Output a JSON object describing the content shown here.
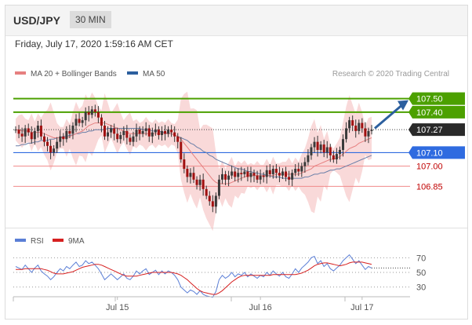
{
  "header": {
    "pair": "USD/JPY",
    "timeframe": "30 MIN"
  },
  "datetime": "Friday, July 17, 2020 1:59:16 AM CET",
  "legend": {
    "ma_bb": "MA 20 + Bollinger Bands",
    "ma50": "MA 50",
    "credit": "Research © 2020 Trading Central"
  },
  "rsi_legend": {
    "rsi": "RSI",
    "ma9": "9MA"
  },
  "colors": {
    "resistance": "#4ca000",
    "support": "#2f6be0",
    "target": "#c00000",
    "current": "#2a2a2a",
    "bollinger": "#f4b9b9",
    "ma20": "#e68080",
    "ma50": "#6a7fa8",
    "arrow": "#2c5f9e",
    "rsi": "#5b7fd6",
    "ma9": "#d62020"
  },
  "chart_data": [
    {
      "type": "candlestick",
      "ylim": [
        106.55,
        107.62
      ],
      "x_ticks": [
        "Jul 15",
        "Jul 16",
        "Jul 17"
      ],
      "levels": [
        {
          "label": "107.50",
          "value": 107.5,
          "kind": "resistance"
        },
        {
          "label": "107.40",
          "value": 107.4,
          "kind": "resistance"
        },
        {
          "label": "107.27",
          "value": 107.27,
          "kind": "current"
        },
        {
          "label": "107.10",
          "value": 107.1,
          "kind": "support"
        },
        {
          "label": "107.00",
          "value": 107.0,
          "kind": "target"
        },
        {
          "label": "106.85",
          "value": 106.85,
          "kind": "target"
        }
      ],
      "close": [
        107.27,
        107.24,
        107.22,
        107.28,
        107.25,
        107.2,
        107.26,
        107.3,
        107.22,
        107.18,
        107.15,
        107.1,
        107.13,
        107.18,
        107.22,
        107.2,
        107.26,
        107.24,
        107.3,
        107.35,
        107.32,
        107.34,
        107.4,
        107.38,
        107.42,
        107.4,
        107.36,
        107.3,
        107.22,
        107.25,
        107.28,
        107.24,
        107.2,
        107.23,
        107.26,
        107.21,
        107.18,
        107.22,
        107.27,
        107.24,
        107.26,
        107.28,
        107.22,
        107.25,
        107.27,
        107.23,
        107.26,
        107.24,
        107.27,
        107.25,
        107.22,
        107.18,
        107.05,
        106.98,
        106.92,
        106.95,
        106.9,
        106.86,
        106.9,
        106.83,
        106.78,
        106.74,
        106.7,
        106.78,
        106.9,
        106.94,
        106.9,
        106.93,
        106.96,
        106.92,
        106.95,
        106.94,
        106.96,
        106.92,
        106.95,
        106.93,
        106.9,
        106.93,
        106.92,
        106.97,
        106.94,
        106.98,
        106.95,
        106.93,
        106.96,
        106.92,
        106.9,
        106.95,
        106.98,
        106.96,
        107.0,
        107.03,
        107.08,
        107.14,
        107.18,
        107.12,
        107.16,
        107.1,
        107.14,
        107.08,
        107.05,
        107.09,
        107.12,
        107.2,
        107.28,
        107.34,
        107.3,
        107.26,
        107.32,
        107.28,
        107.22,
        107.26,
        107.27
      ],
      "ma20": [
        107.27,
        107.27,
        107.26,
        107.26,
        107.26,
        107.25,
        107.25,
        107.25,
        107.25,
        107.24,
        107.23,
        107.22,
        107.21,
        107.21,
        107.21,
        107.21,
        107.21,
        107.22,
        107.23,
        107.24,
        107.25,
        107.26,
        107.28,
        107.3,
        107.31,
        107.32,
        107.32,
        107.32,
        107.32,
        107.31,
        107.3,
        107.29,
        107.28,
        107.27,
        107.26,
        107.25,
        107.24,
        107.24,
        107.24,
        107.24,
        107.24,
        107.24,
        107.24,
        107.24,
        107.24,
        107.24,
        107.24,
        107.24,
        107.24,
        107.24,
        107.23,
        107.22,
        107.2,
        107.17,
        107.14,
        107.11,
        107.08,
        107.05,
        107.02,
        106.99,
        106.96,
        106.93,
        106.9,
        106.88,
        106.87,
        106.87,
        106.87,
        106.87,
        106.88,
        106.89,
        106.9,
        106.91,
        106.92,
        106.93,
        106.93,
        106.93,
        106.93,
        106.93,
        106.93,
        106.93,
        106.93,
        106.93,
        106.94,
        106.94,
        106.94,
        106.94,
        106.94,
        106.94,
        106.94,
        106.94,
        106.95,
        106.96,
        106.97,
        106.98,
        107.0,
        107.01,
        107.02,
        107.03,
        107.04,
        107.05,
        107.05,
        107.06,
        107.07,
        107.09,
        107.11,
        107.13,
        107.14,
        107.15,
        107.17,
        107.18,
        107.19,
        107.2,
        107.21
      ],
      "ma50": [
        107.15,
        107.15,
        107.16,
        107.16,
        107.17,
        107.17,
        107.18,
        107.18,
        107.19,
        107.19,
        107.19,
        107.2,
        107.2,
        107.21,
        107.21,
        107.22,
        107.22,
        107.23,
        107.23,
        107.24,
        107.24,
        107.25,
        107.25,
        107.26,
        107.26,
        107.27,
        107.27,
        107.27,
        107.27,
        107.28,
        107.28,
        107.28,
        107.28,
        107.28,
        107.28,
        107.28,
        107.28,
        107.28,
        107.28,
        107.28,
        107.27,
        107.27,
        107.27,
        107.26,
        107.26,
        107.26,
        107.25,
        107.25,
        107.24,
        107.24,
        107.23,
        107.22,
        107.21,
        107.2,
        107.19,
        107.17,
        107.16,
        107.14,
        107.13,
        107.11,
        107.1,
        107.08,
        107.07,
        107.05,
        107.04,
        107.03,
        107.02,
        107.01,
        107.0,
        106.99,
        106.98,
        106.98,
        106.97,
        106.96,
        106.96,
        106.95,
        106.95,
        106.94,
        106.94,
        106.93,
        106.93,
        106.92,
        106.92,
        106.92,
        106.91,
        106.91,
        106.91,
        106.91,
        106.91,
        106.91,
        106.91,
        106.92,
        106.92,
        106.93,
        106.94,
        106.94,
        106.95,
        106.95,
        106.96,
        106.97,
        106.97,
        106.98,
        106.98,
        106.99,
        107.0,
        107.01,
        107.02,
        107.03,
        107.04,
        107.05,
        107.06,
        107.07,
        107.08
      ]
    },
    {
      "type": "line",
      "ylim": [
        20,
        80
      ],
      "y_ticks": [
        "70",
        "50",
        "30"
      ],
      "series": [
        {
          "name": "RSI",
          "values": [
            58,
            56,
            54,
            60,
            55,
            50,
            56,
            60,
            52,
            48,
            45,
            40,
            44,
            50,
            55,
            52,
            58,
            55,
            60,
            64,
            58,
            60,
            66,
            62,
            64,
            60,
            55,
            48,
            40,
            44,
            48,
            44,
            40,
            44,
            48,
            42,
            40,
            45,
            52,
            48,
            52,
            55,
            47,
            50,
            53,
            47,
            52,
            48,
            52,
            50,
            46,
            40,
            30,
            26,
            22,
            26,
            24,
            20,
            25,
            20,
            18,
            17,
            16,
            24,
            40,
            46,
            42,
            45,
            50,
            44,
            48,
            46,
            50,
            44,
            48,
            45,
            42,
            46,
            44,
            50,
            46,
            52,
            48,
            45,
            50,
            44,
            42,
            48,
            55,
            50,
            56,
            60,
            64,
            70,
            72,
            62,
            66,
            58,
            62,
            55,
            52,
            56,
            60,
            66,
            70,
            74,
            68,
            62,
            66,
            60,
            54,
            58,
            56
          ]
        },
        {
          "name": "9MA",
          "values": [
            54,
            54,
            54,
            55,
            55,
            55,
            55,
            55,
            55,
            54,
            53,
            51,
            49,
            48,
            48,
            48,
            49,
            50,
            51,
            53,
            55,
            57,
            58,
            59,
            60,
            61,
            61,
            60,
            58,
            56,
            54,
            52,
            50,
            48,
            46,
            45,
            45,
            45,
            45,
            46,
            47,
            48,
            49,
            50,
            50,
            50,
            50,
            50,
            50,
            50,
            49,
            48,
            46,
            43,
            40,
            36,
            32,
            28,
            25,
            23,
            22,
            21,
            20,
            20,
            22,
            25,
            29,
            33,
            37,
            40,
            43,
            45,
            46,
            46,
            46,
            46,
            46,
            46,
            46,
            46,
            46,
            47,
            47,
            47,
            47,
            47,
            47,
            47,
            47,
            48,
            49,
            51,
            53,
            56,
            59,
            61,
            62,
            63,
            63,
            62,
            61,
            60,
            59,
            60,
            61,
            63,
            64,
            64,
            64,
            64,
            63,
            62,
            61
          ]
        }
      ]
    }
  ]
}
